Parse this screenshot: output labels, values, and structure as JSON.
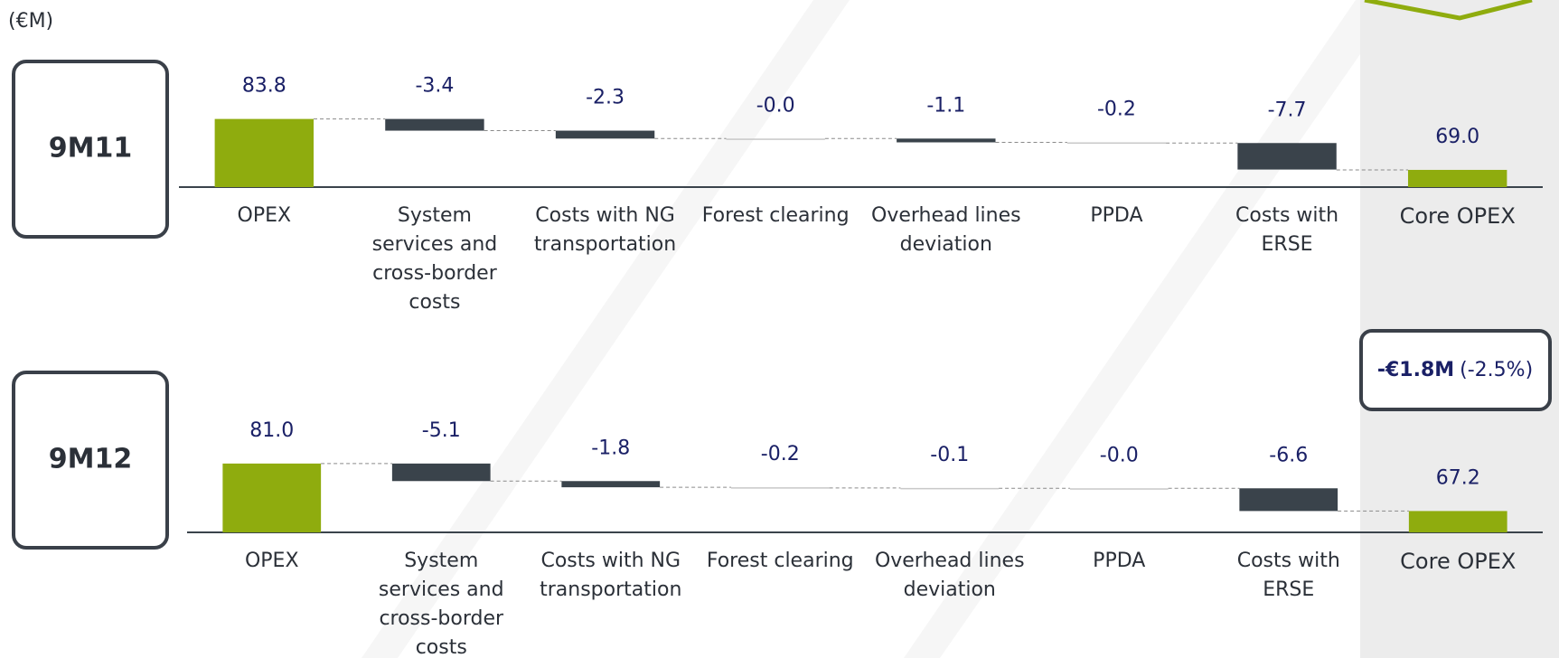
{
  "unit_label": "(€M)",
  "annotation": {
    "change": "-€1.8M",
    "percent": "(-2.5%)"
  },
  "chart_data": [
    {
      "type": "waterfall",
      "title": "9M11",
      "categories": [
        "OPEX",
        "System services and cross-border costs",
        "Costs with NG transportation",
        "Forest clearing",
        "Overhead lines deviation",
        "PPDA",
        "Costs with ERSE",
        "Core OPEX"
      ],
      "measure": [
        "absolute",
        "relative",
        "relative",
        "relative",
        "relative",
        "relative",
        "relative",
        "total"
      ],
      "values": [
        83.8,
        -3.4,
        -2.3,
        -0.0,
        -1.1,
        -0.2,
        -7.7,
        69.0
      ],
      "value_labels": [
        "83.8",
        "-3.4",
        "-2.3",
        "-0.0",
        "-1.1",
        "-0.2",
        "-7.7",
        "69.0"
      ],
      "total_color": "#8fac0e",
      "relative_color": "#3a434b",
      "ylim": [
        64,
        90
      ]
    },
    {
      "type": "waterfall",
      "title": "9M12",
      "categories": [
        "OPEX",
        "System services and cross-border costs",
        "Costs with NG transportation",
        "Forest clearing",
        "Overhead lines deviation",
        "PPDA",
        "Costs with ERSE",
        "Core OPEX"
      ],
      "measure": [
        "absolute",
        "relative",
        "relative",
        "relative",
        "relative",
        "relative",
        "relative",
        "total"
      ],
      "values": [
        81.0,
        -5.1,
        -1.8,
        -0.2,
        -0.1,
        -0.0,
        -6.6,
        67.2
      ],
      "value_labels": [
        "81.0",
        "-5.1",
        "-1.8",
        "-0.2",
        "-0.1",
        "-0.0",
        "-6.6",
        "67.2"
      ],
      "total_color": "#8fac0e",
      "relative_color": "#3a434b",
      "ylim": [
        61,
        87
      ]
    }
  ]
}
